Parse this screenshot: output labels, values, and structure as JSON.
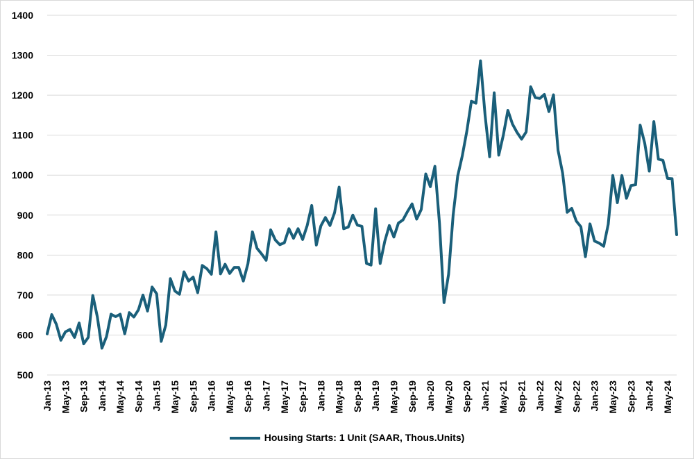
{
  "chart_data": {
    "type": "line",
    "title": "",
    "xlabel": "",
    "ylabel": "",
    "ylim": [
      500,
      1400
    ],
    "yticks": [
      500,
      600,
      700,
      800,
      900,
      1000,
      1100,
      1200,
      1300,
      1400
    ],
    "grid": "horizontal",
    "legend_position": "bottom",
    "x_tick_labels": [
      "Jan-13",
      "May-13",
      "Sep-13",
      "Jan-14",
      "May-14",
      "Sep-14",
      "Jan-15",
      "May-15",
      "Sep-15",
      "Jan-16",
      "May-16",
      "Sep-16",
      "Jan-17",
      "May-17",
      "Sep-17",
      "Jan-18",
      "May-18",
      "Sep-18",
      "Jan-19",
      "May-19",
      "Sep-19",
      "Jan-20",
      "May-20",
      "Sep-20",
      "Jan-21",
      "May-21",
      "Sep-21",
      "Jan-22",
      "May-22",
      "Sep-22",
      "Jan-23",
      "May-23",
      "Sep-23",
      "Jan-24",
      "May-24"
    ],
    "x_start": "Jan-13",
    "x_end": "Jun-24",
    "series": [
      {
        "name": "Housing Starts: 1 Unit (SAAR, Thous.Units)",
        "color": "#1a5f7a",
        "values": [
          603,
          651,
          627,
          587,
          608,
          614,
          594,
          630,
          578,
          594,
          699,
          645,
          567,
          596,
          652,
          646,
          652,
          603,
          656,
          645,
          663,
          700,
          660,
          720,
          703,
          584,
          625,
          741,
          710,
          702,
          758,
          735,
          745,
          706,
          774,
          766,
          752,
          858,
          753,
          777,
          754,
          769,
          769,
          735,
          778,
          858,
          817,
          803,
          787,
          863,
          838,
          826,
          831,
          866,
          842,
          866,
          839,
          874,
          924,
          825,
          873,
          894,
          874,
          906,
          970,
          866,
          870,
          900,
          875,
          872,
          779,
          775,
          916,
          779,
          834,
          874,
          845,
          880,
          888,
          909,
          928,
          890,
          914,
          1003,
          971,
          1022,
          880,
          681,
          752,
          900,
          998,
          1048,
          1110,
          1185,
          1180,
          1286,
          1150,
          1046,
          1206,
          1050,
          1100,
          1162,
          1128,
          1107,
          1090,
          1108,
          1221,
          1194,
          1192,
          1202,
          1159,
          1201,
          1062,
          1005,
          907,
          917,
          885,
          871,
          796,
          878,
          835,
          830,
          822,
          877,
          999,
          931,
          999,
          942,
          974,
          976,
          1125,
          1080,
          1010,
          1134,
          1040,
          1037,
          992,
          991,
          851
        ]
      }
    ]
  },
  "legend": {
    "label": "Housing Starts: 1 Unit (SAAR, Thous.Units)"
  }
}
